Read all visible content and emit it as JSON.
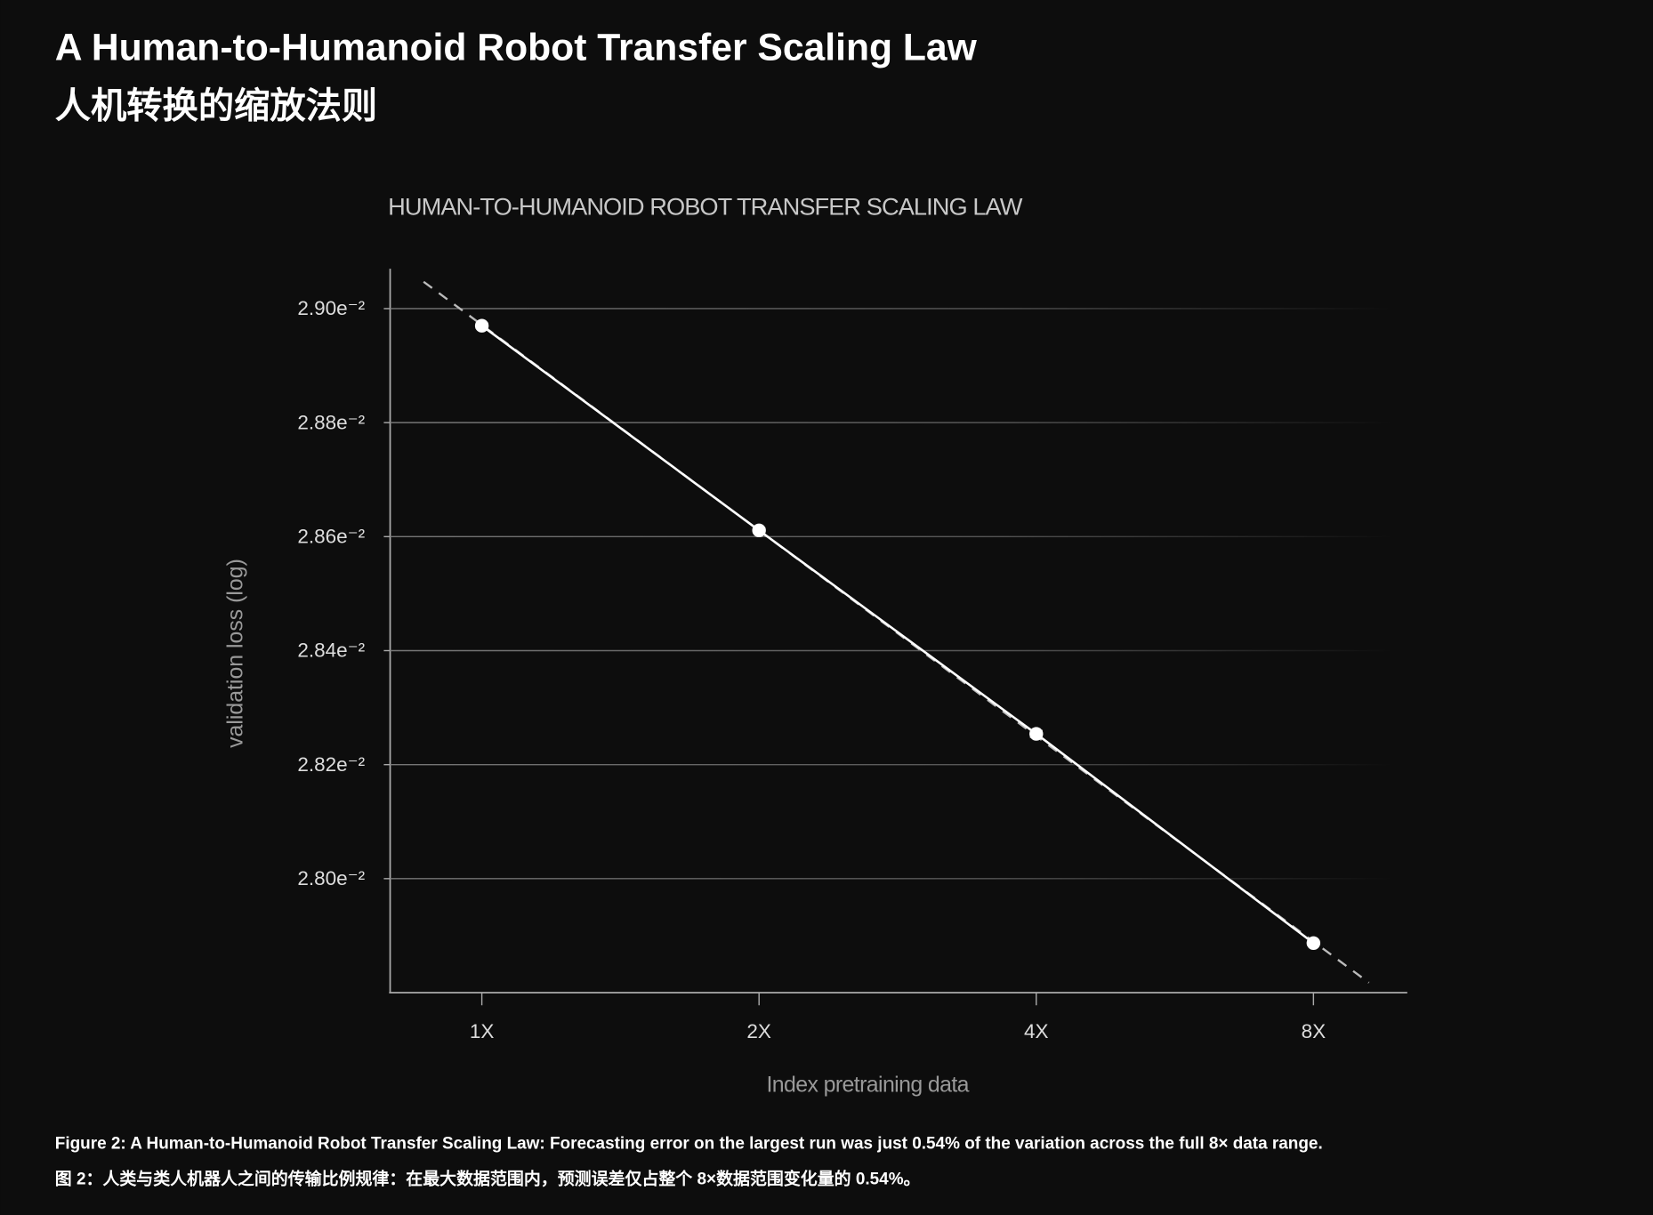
{
  "header": {
    "title": "A Human-to-Humanoid Robot Transfer Scaling Law",
    "subtitle": "人机转换的缩放法则"
  },
  "chart_data": {
    "type": "line",
    "title": "HUMAN-TO-HUMANOID ROBOT TRANSFER SCALING LAW",
    "x_label": "Index pretraining data",
    "y_label": "validation loss (log)",
    "categories": [
      "1X",
      "2X",
      "4X",
      "8X"
    ],
    "series": [
      {
        "name": "validation loss",
        "color": "#ffffff",
        "values": [
          0.02897,
          0.028611,
          0.028254,
          0.027887
        ],
        "errors": [
          4.3e-06,
          4.1e-06,
          5.7e-06,
          3.2e-06
        ]
      }
    ],
    "trendline": {
      "style": "dashed",
      "color": "#bbbbbb"
    },
    "ylim": [
      0.0278,
      0.02907
    ],
    "yticks": [
      {
        "value": 0.028,
        "label": "2.80e⁻²"
      },
      {
        "value": 0.0282,
        "label": "2.82e⁻²"
      },
      {
        "value": 0.0284,
        "label": "2.84e⁻²"
      },
      {
        "value": 0.0286,
        "label": "2.86e⁻²"
      },
      {
        "value": 0.0288,
        "label": "2.88e⁻²"
      },
      {
        "value": 0.029,
        "label": "2.90e⁻²"
      }
    ],
    "grid": true
  },
  "caption": {
    "en": "Figure 2: A Human-to-Humanoid Robot Transfer Scaling Law: Forecasting error on the largest run was just 0.54% of the variation across the full 8× data range.",
    "zh": "图 2：人类与类人机器人之间的传输比例规律：在最大数据范围内，预测误差仅占整个 8×数据范围变化量的 0.54%。"
  }
}
